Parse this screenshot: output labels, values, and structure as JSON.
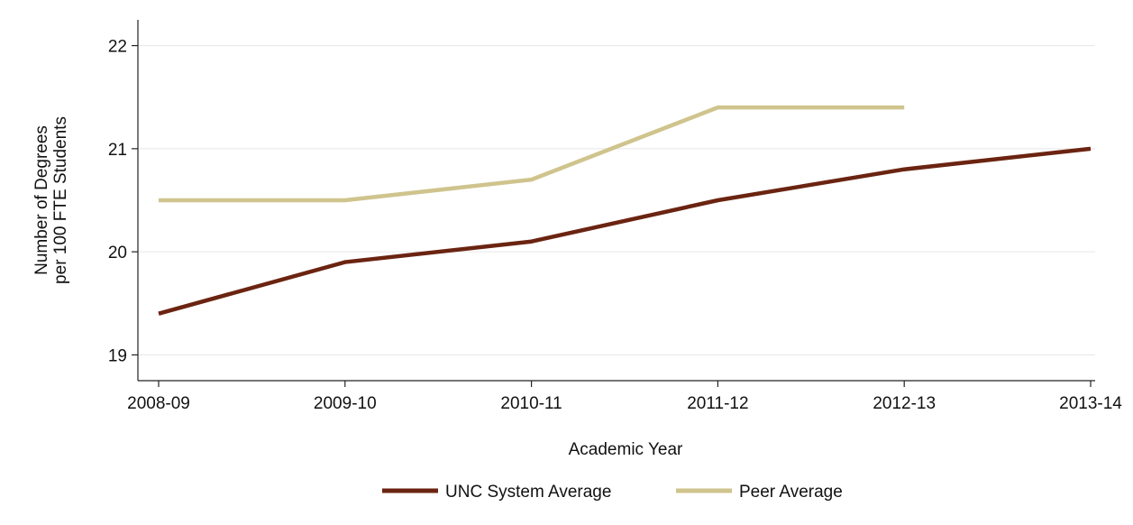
{
  "chart_data": {
    "type": "line",
    "title": "",
    "xlabel": "Academic Year",
    "ylabel_lines": [
      "Number of Degrees",
      "per 100 FTE Students"
    ],
    "categories": [
      "2008-09",
      "2009-10",
      "2010-11",
      "2011-12",
      "2012-13",
      "2013-14"
    ],
    "ylim": [
      18.75,
      22.25
    ],
    "yticks": [
      19,
      20,
      21,
      22
    ],
    "grid": true,
    "legend_position": "bottom",
    "series": [
      {
        "name": "UNC System Average",
        "color": "#6b2411",
        "values": [
          19.4,
          19.9,
          20.1,
          20.5,
          20.8,
          21.0
        ]
      },
      {
        "name": "Peer Average",
        "color": "#cfc48d",
        "values": [
          20.5,
          20.5,
          20.7,
          21.4,
          21.4,
          null
        ]
      }
    ]
  }
}
